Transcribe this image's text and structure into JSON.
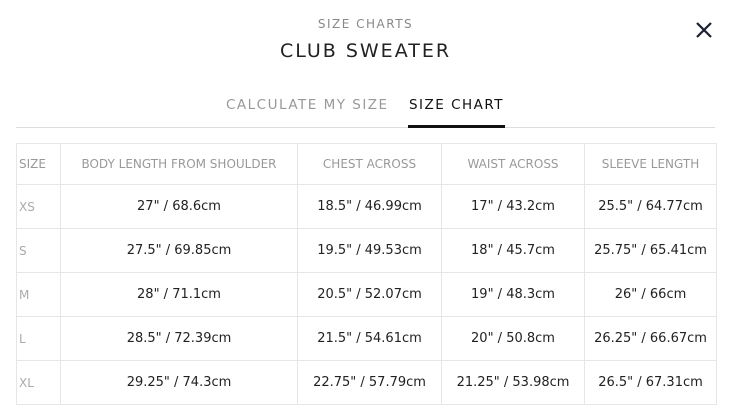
{
  "header": {
    "eyebrow": "SIZE CHARTS",
    "title": "CLUB SWEATER",
    "close_icon": "close-icon"
  },
  "tabs": [
    {
      "label": "CALCULATE MY SIZE",
      "active": false
    },
    {
      "label": "SIZE CHART",
      "active": true
    }
  ],
  "table": {
    "columns": [
      "SIZE",
      "BODY LENGTH FROM SHOULDER",
      "CHEST ACROSS",
      "WAIST ACROSS",
      "SLEEVE LENGTH"
    ],
    "rows": [
      [
        "XS",
        "27\" / 68.6cm",
        "18.5\" / 46.99cm",
        "17\" / 43.2cm",
        "25.5\" / 64.77cm"
      ],
      [
        "S",
        "27.5\" / 69.85cm",
        "19.5\" / 49.53cm",
        "18\" / 45.7cm",
        "25.75\" / 65.41cm"
      ],
      [
        "M",
        "28\" / 71.1cm",
        "20.5\" / 52.07cm",
        "19\" / 48.3cm",
        "26\" / 66cm"
      ],
      [
        "L",
        "28.5\" / 72.39cm",
        "21.5\" / 54.61cm",
        "20\" / 50.8cm",
        "26.25\" / 66.67cm"
      ],
      [
        "XL",
        "29.25\" / 74.3cm",
        "22.75\" / 57.79cm",
        "21.25\" / 53.98cm",
        "26.5\" / 67.31cm"
      ]
    ]
  }
}
